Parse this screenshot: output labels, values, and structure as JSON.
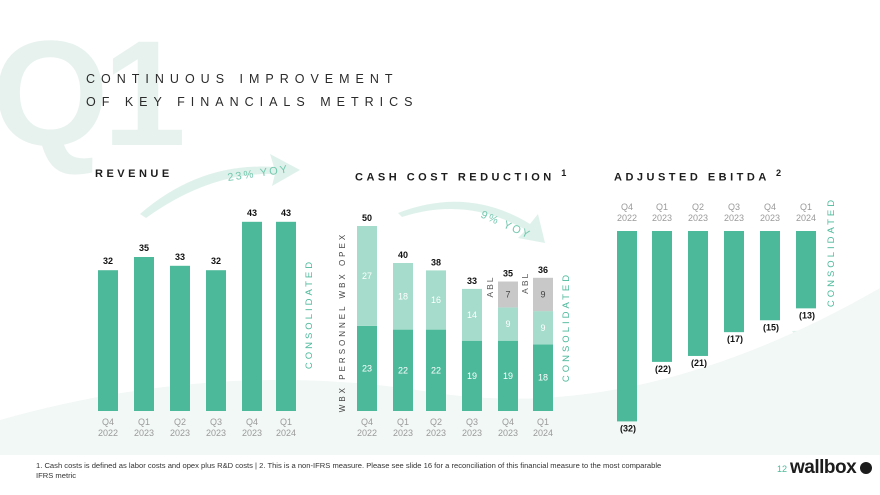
{
  "page": {
    "watermark": "Q1",
    "title_line1": "CONTINUOUS IMPROVEMENT",
    "title_line2": "OF KEY FINANCIALS METRICS",
    "footnote": "1. Cash costs is defined as labor costs and opex plus R&D costs | 2. This is a non-IFRS measure. Please see slide 16 for a reconciliation of this financial measure to the most comparable IFRS metric",
    "page_number": "12",
    "logo_text": "wallbox"
  },
  "colors": {
    "green": "#4cb99a",
    "light_green": "#a6dccb",
    "gray": "#c8c8c8",
    "text": "#333333",
    "tick": "#9a9a9a",
    "arrow": "#dff1eb"
  },
  "chart_data": [
    {
      "type": "bar",
      "title": "REVENUE",
      "annotation": "23% YOY",
      "side_label": "CONSOLIDATED",
      "categories": [
        [
          "Q4",
          "2022"
        ],
        [
          "Q1",
          "2023"
        ],
        [
          "Q2",
          "2023"
        ],
        [
          "Q3",
          "2023"
        ],
        [
          "Q4",
          "2023"
        ],
        [
          "Q1",
          "2024"
        ]
      ],
      "values": [
        32,
        35,
        33,
        32,
        43,
        43
      ],
      "ylim": [
        0,
        45
      ]
    },
    {
      "type": "stacked-bar",
      "title": "CASH COST REDUCTION",
      "title_sup": "1",
      "annotation": "9% YOY",
      "side_label": "CONSOLIDATED",
      "axis_label": "WBX PERSONNEL   WBX OPEX",
      "categories": [
        [
          "Q4",
          "2022"
        ],
        [
          "Q1",
          "2023"
        ],
        [
          "Q2",
          "2023"
        ],
        [
          "Q3",
          "2023"
        ],
        [
          "Q4",
          "2023"
        ],
        [
          "Q1",
          "2024"
        ]
      ],
      "totals": [
        50,
        40,
        38,
        33,
        35,
        36
      ],
      "series": [
        {
          "name": "WBX PERSONNEL",
          "values": [
            23,
            22,
            22,
            19,
            19,
            18
          ]
        },
        {
          "name": "WBX OPEX",
          "values": [
            27,
            18,
            16,
            14,
            9,
            9
          ]
        },
        {
          "name": "ABL",
          "values": [
            null,
            null,
            null,
            null,
            7,
            9
          ]
        }
      ],
      "abl_label": "ABL",
      "ylim": [
        0,
        52
      ]
    },
    {
      "type": "bar",
      "title": "ADJUSTED EBITDA",
      "title_sup": "2",
      "side_label": "CONSOLIDATED",
      "categories": [
        [
          "Q4",
          "2022"
        ],
        [
          "Q1",
          "2023"
        ],
        [
          "Q2",
          "2023"
        ],
        [
          "Q3",
          "2023"
        ],
        [
          "Q4",
          "2023"
        ],
        [
          "Q1",
          "2024"
        ]
      ],
      "values": [
        -32,
        -22,
        -21,
        -17,
        -15,
        -13
      ],
      "value_labels": [
        "(32)",
        "(22)",
        "(21)",
        "(17)",
        "(15)",
        "(13)"
      ],
      "ylim": [
        -34,
        0
      ]
    }
  ]
}
